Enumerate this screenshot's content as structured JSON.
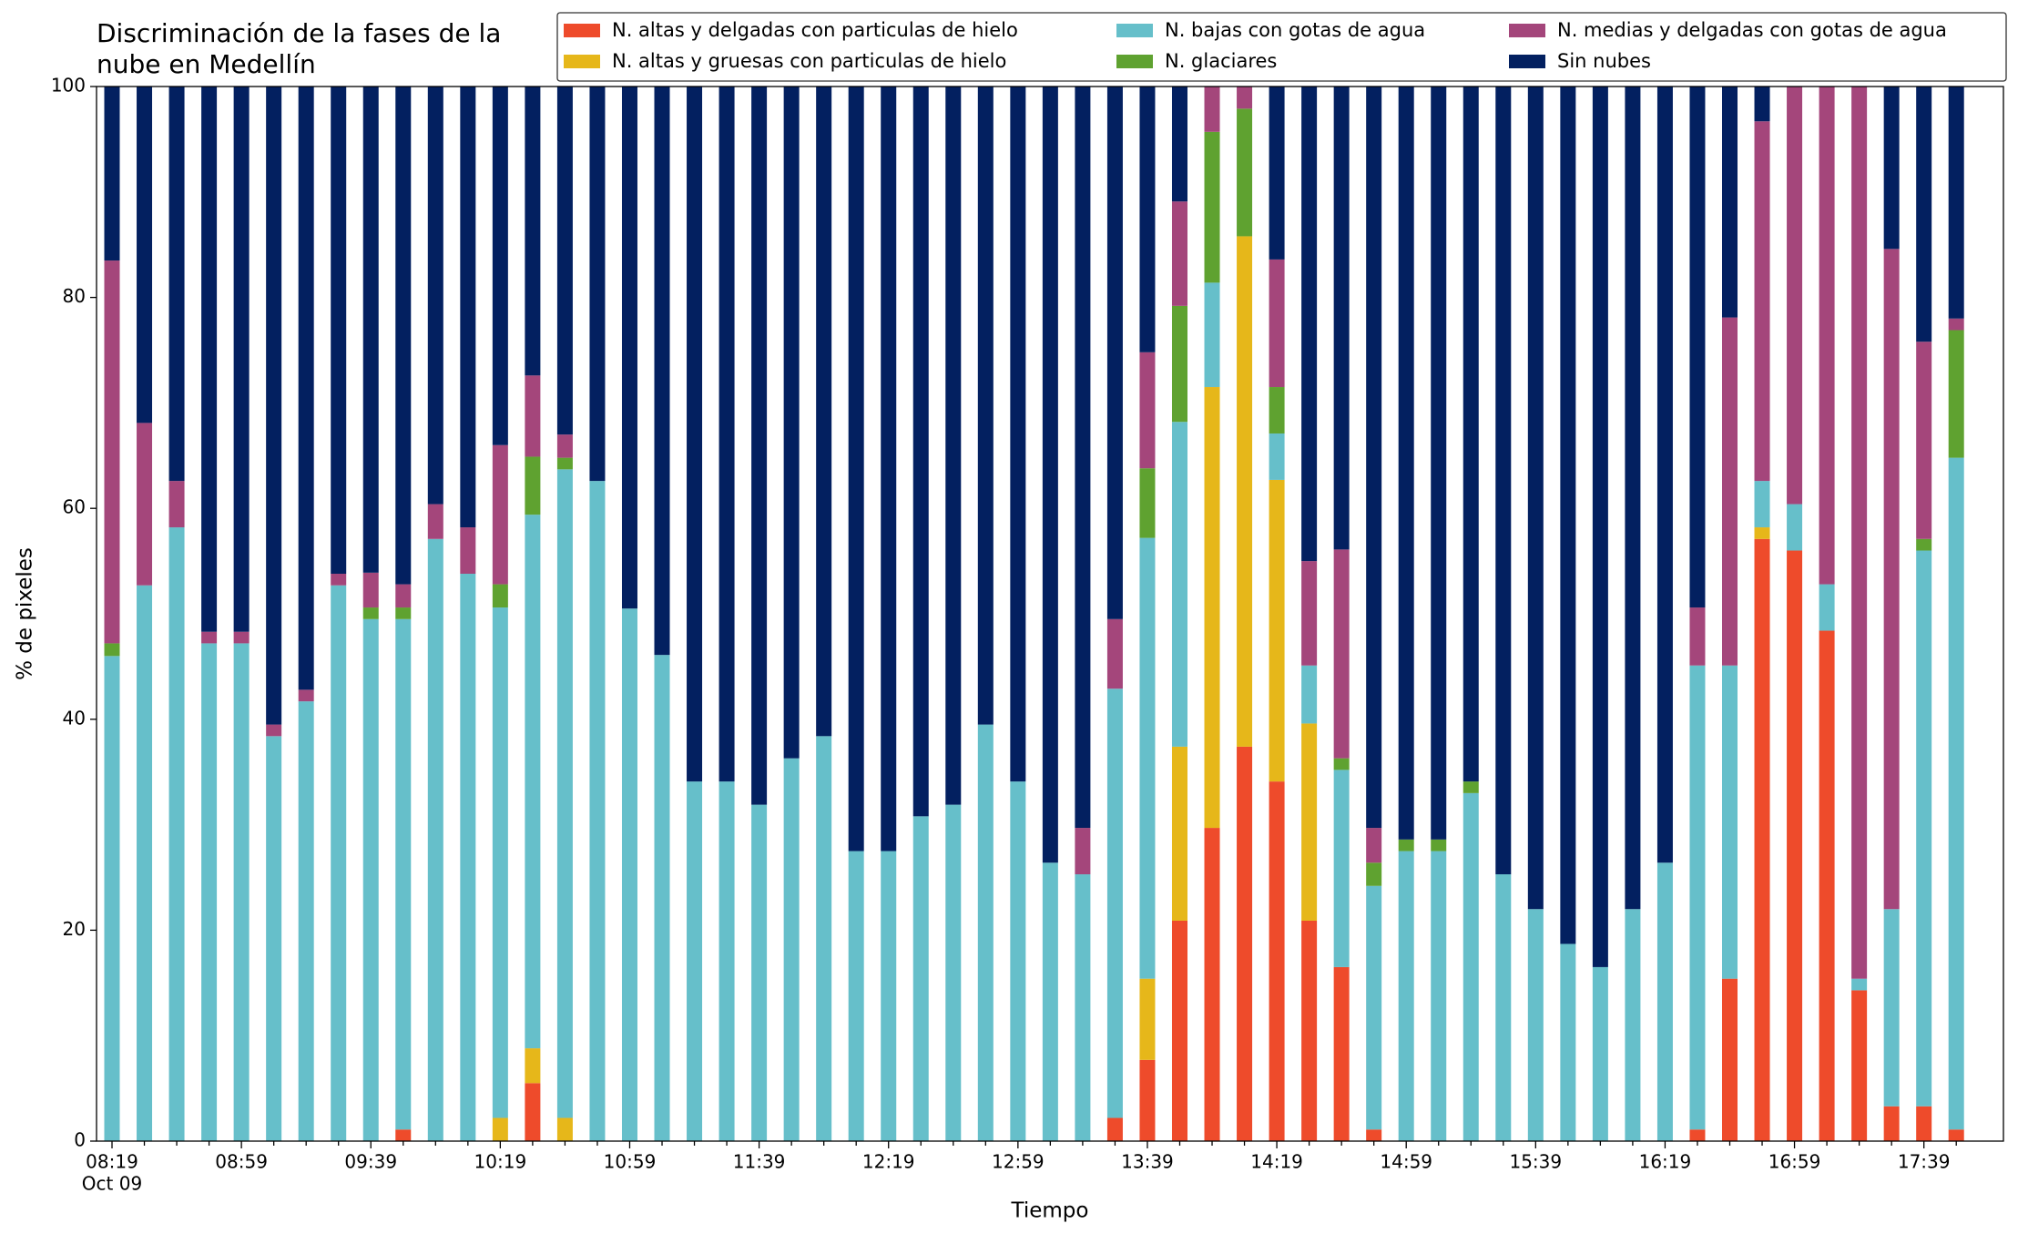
{
  "chart_data": {
    "type": "stacked_bar",
    "title": "Discriminación de la fases de la nube en Medellín",
    "xlabel": "Tiempo",
    "ylabel": "% de pixeles",
    "x_sublabel": "Oct 09",
    "categories": [
      "08:19",
      null,
      null,
      null,
      "08:59",
      null,
      null,
      null,
      "09:39",
      null,
      null,
      null,
      "10:19",
      null,
      null,
      null,
      "10:59",
      null,
      null,
      null,
      "11:39",
      null,
      null,
      null,
      "12:19",
      null,
      null,
      null,
      "12:59",
      null,
      null,
      null,
      "13:39",
      null,
      null,
      null,
      "14:19",
      null,
      null,
      null,
      "14:59",
      null,
      null,
      null,
      "15:39",
      null,
      null,
      null,
      "16:19",
      null,
      null,
      null,
      "16:59",
      null,
      null,
      null,
      "17:39",
      null
    ],
    "ylim": [
      0,
      100
    ],
    "yticks": [
      0,
      20,
      40,
      60,
      80,
      100
    ],
    "series": [
      {
        "name": "N. altas y delgadas con particulas de hielo",
        "color": "#ee4b2b",
        "values": [
          0,
          0,
          0,
          0,
          0,
          0,
          0,
          0,
          0,
          1.1,
          0,
          0,
          0,
          5.5,
          0,
          0,
          0,
          0,
          0,
          0,
          0,
          0,
          0,
          0,
          0,
          0,
          0,
          0,
          0,
          0,
          0,
          2.2,
          7.7,
          20.9,
          29.7,
          37.4,
          34.1,
          20.9,
          16.5,
          1.1,
          0,
          0,
          0,
          0,
          0,
          0,
          0,
          0,
          0,
          1.1,
          15.4,
          57.1,
          56.0,
          48.4,
          14.3,
          3.3,
          3.3,
          1.1
        ]
      },
      {
        "name": "N. altas y gruesas con particulas de hielo",
        "color": "#e6b71a",
        "values": [
          0,
          0,
          0,
          0,
          0,
          0,
          0,
          0,
          0,
          0,
          0,
          0,
          2.2,
          3.3,
          2.2,
          0,
          0,
          0,
          0,
          0,
          0,
          0,
          0,
          0,
          0,
          0,
          0,
          0,
          0,
          0,
          0,
          0,
          7.7,
          16.5,
          41.8,
          48.4,
          28.6,
          18.7,
          0,
          0,
          0,
          0,
          0,
          0,
          0,
          0,
          0,
          0,
          0,
          0,
          0,
          1.1,
          0,
          0,
          0,
          0,
          0,
          0
        ]
      },
      {
        "name": "N. bajas con gotas de agua",
        "color": "#66bfca",
        "values": [
          46,
          52.7,
          58.2,
          47.2,
          47.2,
          38.4,
          41.7,
          52.7,
          49.5,
          48.4,
          57.1,
          53.8,
          48.4,
          50.6,
          61.5,
          62.6,
          50.5,
          46.1,
          34.1,
          34.1,
          31.9,
          36.3,
          38.4,
          27.5,
          27.5,
          30.8,
          31.9,
          39.5,
          34.1,
          26.4,
          25.3,
          40.7,
          41.8,
          30.8,
          9.9,
          0,
          4.4,
          5.5,
          18.7,
          23.1,
          27.5,
          27.5,
          33.0,
          25.3,
          22.0,
          18.7,
          16.5,
          22.0,
          26.4,
          44.0,
          29.7,
          4.4,
          4.4,
          4.4,
          1.1,
          18.7,
          52.7,
          63.7
        ]
      },
      {
        "name": "N. glaciares",
        "color": "#5fa230",
        "values": [
          1.2,
          0,
          0,
          0,
          0,
          0,
          0,
          0,
          1.1,
          1.1,
          0,
          0,
          2.2,
          5.5,
          1.1,
          0,
          0,
          0,
          0,
          0,
          0,
          0,
          0,
          0,
          0,
          0,
          0,
          0,
          0,
          0,
          0,
          0,
          6.6,
          11.0,
          14.3,
          12.1,
          4.4,
          0,
          1.1,
          2.2,
          1.1,
          1.1,
          1.1,
          0,
          0,
          0,
          0,
          0,
          0,
          0,
          0,
          0,
          0,
          0,
          0,
          0,
          1.1,
          12.1
        ]
      },
      {
        "name": "N. medias y delgadas con gotas de agua",
        "color": "#a4467b",
        "values": [
          36.3,
          15.4,
          4.4,
          1.1,
          1.1,
          1.1,
          1.1,
          1.1,
          3.3,
          2.2,
          3.3,
          4.4,
          13.2,
          7.7,
          2.2,
          0,
          0,
          0,
          0,
          0,
          0,
          0,
          0,
          0,
          0,
          0,
          0,
          0,
          0,
          0,
          4.4,
          6.6,
          11.0,
          9.9,
          4.3,
          2.1,
          12.1,
          9.9,
          19.8,
          3.3,
          0,
          0,
          0,
          0,
          0,
          0,
          0,
          0,
          0,
          5.5,
          33.0,
          34.1,
          39.6,
          47.2,
          84.6,
          62.6,
          18.7,
          1.1
        ]
      },
      {
        "name": "Sin nubes",
        "color": "#032060",
        "values": [
          16.5,
          31.9,
          37.4,
          51.7,
          51.7,
          60.5,
          57.2,
          46.2,
          46.1,
          47.2,
          39.6,
          41.8,
          34.0,
          27.4,
          33.0,
          37.4,
          49.5,
          53.9,
          65.9,
          65.9,
          68.1,
          63.7,
          61.6,
          72.5,
          72.5,
          69.2,
          68.1,
          60.5,
          65.9,
          73.6,
          70.3,
          50.5,
          25.2,
          10.9,
          0,
          0,
          16.4,
          45.0,
          43.9,
          70.3,
          71.4,
          71.4,
          65.9,
          74.7,
          78.0,
          81.3,
          83.5,
          78.0,
          73.6,
          49.4,
          21.9,
          3.3,
          0,
          0,
          0,
          15.4,
          24.2,
          22.0
        ]
      }
    ]
  }
}
